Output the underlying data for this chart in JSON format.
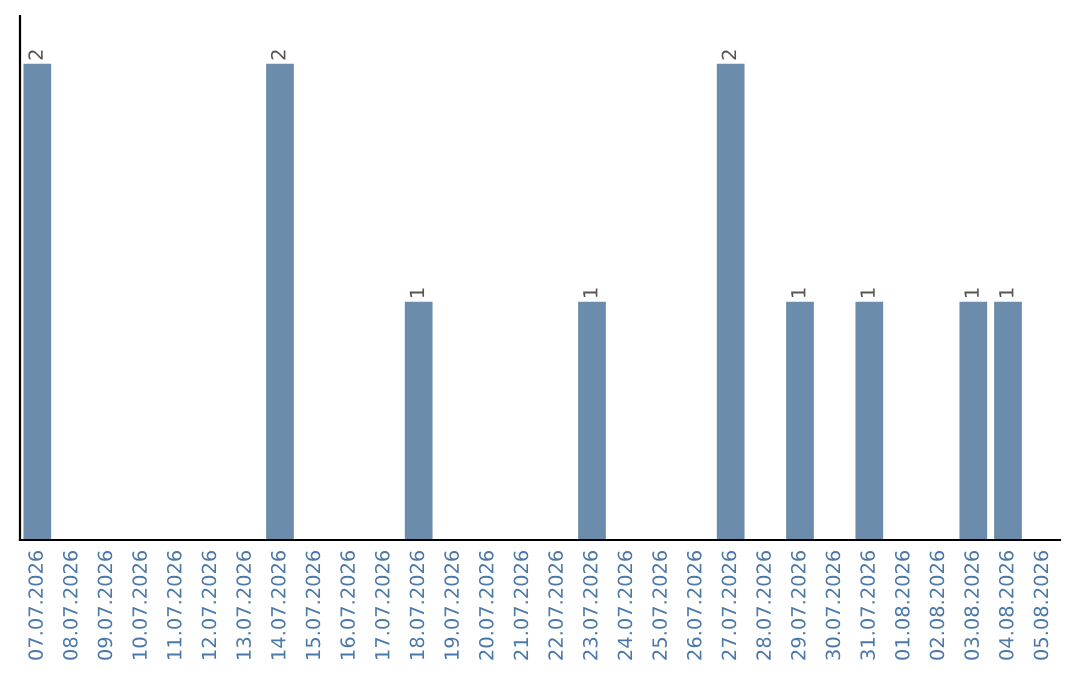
{
  "chart_data": {
    "type": "bar",
    "categories": [
      "07.07.2026",
      "08.07.2026",
      "09.07.2026",
      "10.07.2026",
      "11.07.2026",
      "12.07.2026",
      "13.07.2026",
      "14.07.2026",
      "15.07.2026",
      "16.07.2026",
      "17.07.2026",
      "18.07.2026",
      "19.07.2026",
      "20.07.2026",
      "21.07.2026",
      "22.07.2026",
      "23.07.2026",
      "24.07.2026",
      "25.07.2026",
      "26.07.2026",
      "27.07.2026",
      "28.07.2026",
      "29.07.2026",
      "30.07.2026",
      "31.07.2026",
      "01.08.2026",
      "02.08.2026",
      "03.08.2026",
      "04.08.2026",
      "05.08.2026"
    ],
    "values": [
      2,
      0,
      0,
      0,
      0,
      0,
      0,
      2,
      0,
      0,
      0,
      1,
      0,
      0,
      0,
      0,
      1,
      0,
      0,
      0,
      2,
      0,
      1,
      0,
      1,
      0,
      0,
      1,
      1,
      0
    ],
    "value_labels": [
      "2",
      null,
      null,
      null,
      null,
      null,
      null,
      "2",
      null,
      null,
      null,
      "1",
      null,
      null,
      null,
      null,
      "1",
      null,
      null,
      null,
      "2",
      null,
      "1",
      null,
      "1",
      null,
      null,
      "1",
      "1",
      null
    ],
    "color": "#6b8caa",
    "tick_labels": "x",
    "grid": false,
    "legend": false
  }
}
